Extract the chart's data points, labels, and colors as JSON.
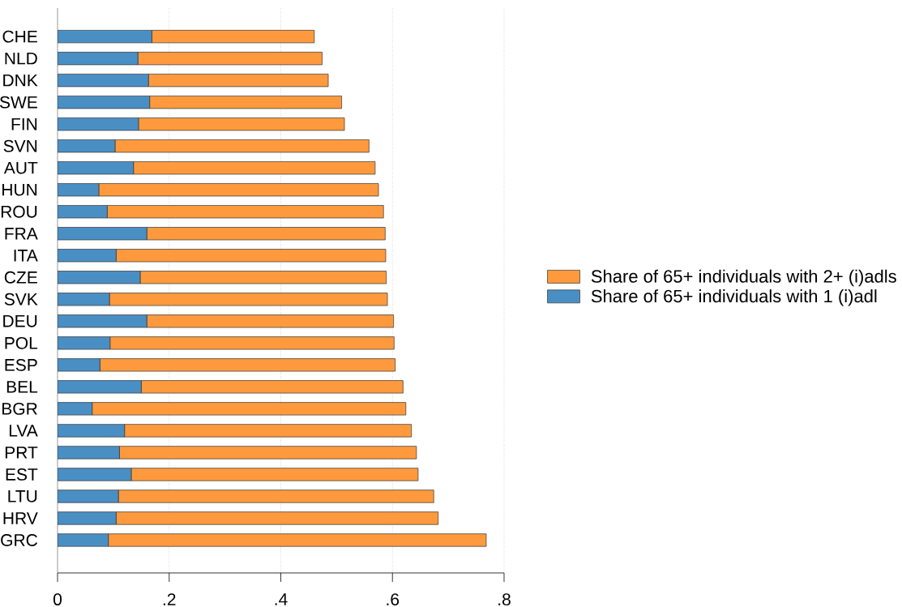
{
  "chart_data": {
    "type": "bar",
    "orientation": "horizontal",
    "stacked": true,
    "categories": [
      "CHE",
      "NLD",
      "DNK",
      "SWE",
      "FIN",
      "SVN",
      "AUT",
      "HUN",
      "ROU",
      "FRA",
      "ITA",
      "CZE",
      "SVK",
      "DEU",
      "POL",
      "ESP",
      "BEL",
      "BGR",
      "LVA",
      "PRT",
      "EST",
      "LTU",
      "HRV",
      "GRC"
    ],
    "series": [
      {
        "name": "Share of 65+ individuals with 1 (i)adl",
        "color": "#4a8fc4",
        "values": [
          0.169,
          0.144,
          0.163,
          0.165,
          0.145,
          0.103,
          0.136,
          0.074,
          0.089,
          0.16,
          0.105,
          0.148,
          0.093,
          0.16,
          0.094,
          0.076,
          0.15,
          0.062,
          0.12,
          0.111,
          0.132,
          0.109,
          0.105,
          0.091
        ]
      },
      {
        "name": "Share of 65+ individuals with 2+ (i)adls",
        "color": "#fe9a3d",
        "values": [
          0.291,
          0.33,
          0.322,
          0.344,
          0.369,
          0.455,
          0.433,
          0.501,
          0.495,
          0.427,
          0.483,
          0.441,
          0.498,
          0.442,
          0.509,
          0.529,
          0.469,
          0.562,
          0.514,
          0.532,
          0.514,
          0.565,
          0.577,
          0.677
        ]
      }
    ],
    "xlim": [
      0,
      0.8
    ],
    "xticks": [
      0,
      {
        "value": 0.2,
        "label": ".2"
      },
      {
        "value": 0.4,
        "label": ".4"
      },
      {
        "value": 0.6,
        "label": ".6"
      },
      {
        "value": 0.8,
        "label": ".8"
      }
    ],
    "grid": "x",
    "legend": "right"
  }
}
